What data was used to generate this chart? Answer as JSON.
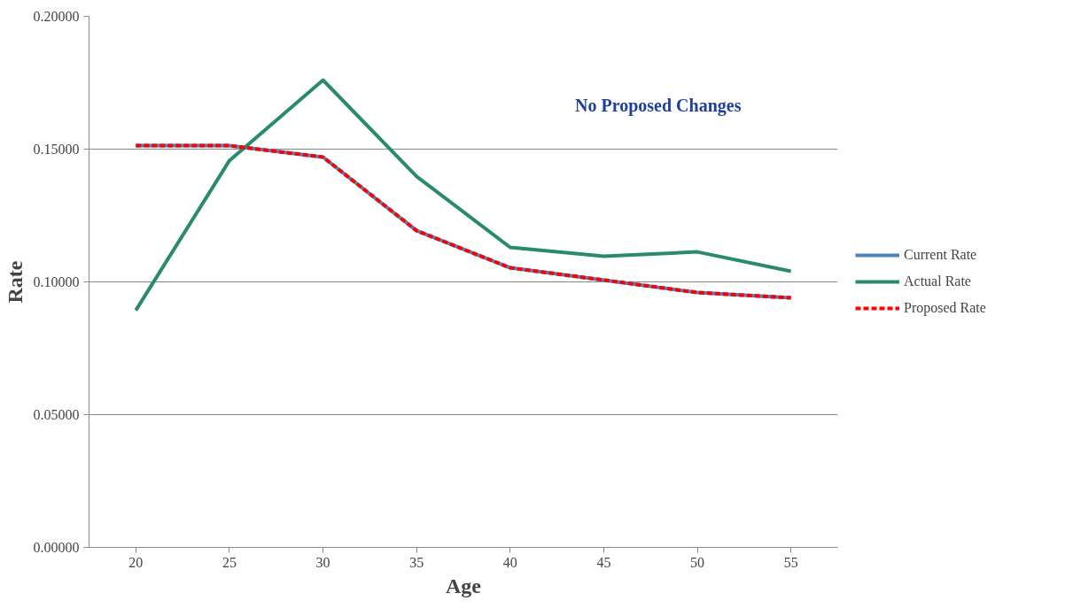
{
  "chart_data": {
    "type": "line",
    "xlabel": "Age",
    "ylabel": "Rate",
    "categories": [
      "20",
      "25",
      "30",
      "35",
      "40",
      "45",
      "50",
      "55"
    ],
    "series": [
      {
        "name": "Current Rate",
        "color": "#4f81bd",
        "line_style": "solid",
        "values": [
          0.1513,
          0.1513,
          0.147,
          0.1193,
          0.1053,
          0.1007,
          0.096,
          0.094
        ]
      },
      {
        "name": "Actual Rate",
        "color": "#2a8a6e",
        "line_style": "solid",
        "values": [
          0.0893,
          0.1457,
          0.176,
          0.1397,
          0.113,
          0.1097,
          0.1113,
          0.104
        ]
      },
      {
        "name": "Proposed Rate",
        "color": "#ff0000",
        "line_style": "dashed",
        "values": [
          0.1513,
          0.1513,
          0.147,
          0.1193,
          0.1053,
          0.1007,
          0.096,
          0.094
        ]
      }
    ],
    "ylim": [
      0,
      0.2
    ],
    "yticks": [
      {
        "value": 0,
        "label": "0.00000"
      },
      {
        "value": 0.05,
        "label": "0.05000"
      },
      {
        "value": 0.1,
        "label": "0.10000"
      },
      {
        "value": 0.15,
        "label": "0.15000"
      },
      {
        "value": 0.2,
        "label": "0.20000"
      }
    ],
    "grid": "y",
    "legend": "right",
    "marker": "none",
    "annotations": [
      "No Proposed Changes"
    ]
  }
}
